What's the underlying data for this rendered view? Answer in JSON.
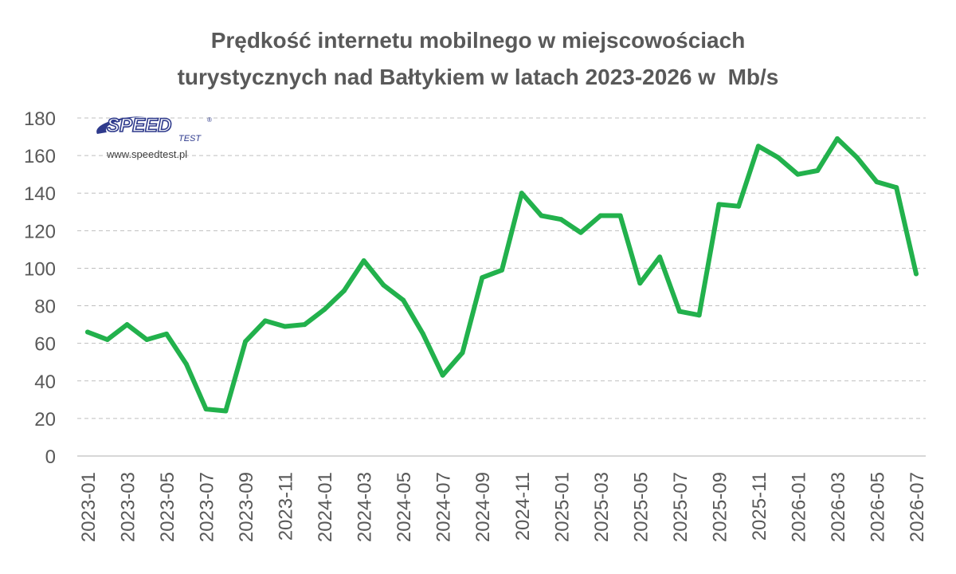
{
  "chart_data": {
    "type": "line",
    "title": [
      "Prędkość internetu mobilnego w miejscowościach",
      "turystycznych nad Bałtykiem w latach 2023-2026 w  Mb/s"
    ],
    "xlabel": "",
    "ylabel": "",
    "ylim": [
      0,
      180
    ],
    "yticks": [
      0,
      20,
      40,
      60,
      80,
      100,
      120,
      140,
      160,
      180
    ],
    "grid": true,
    "line_color": "#22b14c",
    "x": [
      "2023-01",
      "2023-02",
      "2023-03",
      "2023-04",
      "2023-05",
      "2023-06",
      "2023-07",
      "2023-08",
      "2023-09",
      "2023-10",
      "2023-11",
      "2023-12",
      "2024-01",
      "2024-02",
      "2024-03",
      "2024-04",
      "2024-05",
      "2024-06",
      "2024-07",
      "2024-08",
      "2024-09",
      "2024-10",
      "2024-11",
      "2024-12",
      "2025-01",
      "2025-02",
      "2025-03",
      "2025-04",
      "2025-05",
      "2025-06",
      "2025-07",
      "2025-08",
      "2025-09",
      "2025-10",
      "2025-11",
      "2025-12",
      "2026-01",
      "2026-02",
      "2026-03",
      "2026-04",
      "2026-05",
      "2026-06",
      "2026-07"
    ],
    "x_tick_labels": [
      "2023-01",
      "2023-03",
      "2023-05",
      "2023-07",
      "2023-09",
      "2023-11",
      "2024-01",
      "2024-03",
      "2024-05",
      "2024-07",
      "2024-09",
      "2024-11",
      "2025-01",
      "2025-03",
      "2025-05",
      "2025-07",
      "2025-09",
      "2025-11",
      "2026-01",
      "2026-03",
      "2026-05",
      "2026-07"
    ],
    "series": [
      {
        "values": [
          66,
          62,
          70,
          62,
          65,
          49,
          25,
          24,
          61,
          72,
          69,
          70,
          78,
          88,
          104,
          91,
          83,
          65,
          43,
          55,
          95,
          99,
          140,
          128,
          126,
          119,
          128,
          128,
          92,
          106,
          77,
          75,
          134,
          133,
          165,
          159,
          150,
          152,
          169,
          159,
          146,
          143,
          97
        ]
      }
    ]
  },
  "logo": {
    "brand": "SPEED",
    "sub": "TEST",
    "url": "www.speedtest.pl",
    "brand_color": "#2e3a8c"
  }
}
